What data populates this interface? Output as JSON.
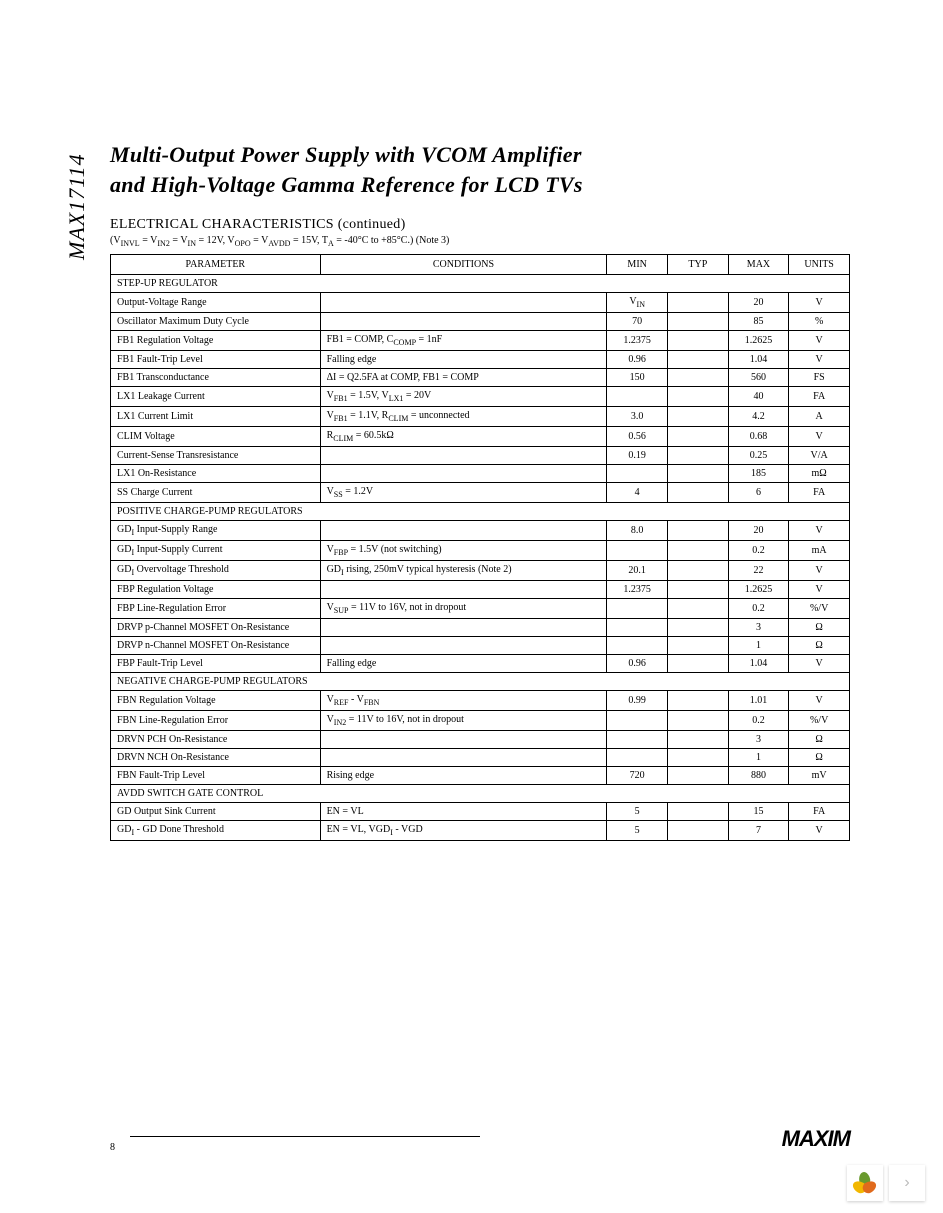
{
  "part_number": "MAX17114",
  "title_line1": "Multi-Output Power Supply with VCOM Amplifier",
  "title_line2": "and High-Voltage Gamma Reference for LCD TVs",
  "section_heading": "ELECTRICAL CHARACTERISTICS (continued)",
  "conditions_line": "(V_INVL = V_IN2 = V_IN = 12V, V_OPO = V_AVDD = 15V, T_A = -40°C to +85°C.) (Note 3)",
  "page_number": "8",
  "logo_text": "MAXIM",
  "table": {
    "columns": [
      "PARAMETER",
      "CONDITIONS",
      "MIN",
      "TYP",
      "MAX",
      "UNITS"
    ],
    "col_classes": [
      "col-param",
      "col-cond",
      "col-min",
      "col-typ",
      "col-max",
      "col-units"
    ],
    "border_color": "#000000",
    "font_size": 10,
    "rows": [
      {
        "type": "section",
        "label": "STEP-UP REGULATOR"
      },
      {
        "type": "data",
        "cells": [
          "Output-Voltage Range",
          "",
          "V_IN",
          "",
          "20",
          "V"
        ]
      },
      {
        "type": "data",
        "cells": [
          "Oscillator Maximum Duty Cycle",
          "",
          "70",
          "",
          "85",
          "%"
        ]
      },
      {
        "type": "data",
        "cells": [
          "FB1 Regulation Voltage",
          "FB1 = COMP, C_COMP = 1nF",
          "1.2375",
          "",
          "1.2625",
          "V"
        ]
      },
      {
        "type": "data",
        "cells": [
          "FB1 Fault-Trip Level",
          "Falling edge",
          "0.96",
          "",
          "1.04",
          "V"
        ]
      },
      {
        "type": "data",
        "cells": [
          "FB1 Transconductance",
          "ΔI = Q2.5FA at COMP, FB1 = COMP",
          "150",
          "",
          "560",
          "FS"
        ]
      },
      {
        "type": "data",
        "cells": [
          "LX1 Leakage Current",
          "V_FB1 = 1.5V, V_LX1 = 20V",
          "",
          "",
          "40",
          "FA"
        ]
      },
      {
        "type": "data",
        "cells": [
          "LX1 Current Limit",
          "V_FB1 = 1.1V, R_CLIM = unconnected",
          "3.0",
          "",
          "4.2",
          "A"
        ]
      },
      {
        "type": "data",
        "cells": [
          "CLIM Voltage",
          "R_CLIM = 60.5kΩ",
          "0.56",
          "",
          "0.68",
          "V"
        ]
      },
      {
        "type": "data",
        "cells": [
          "Current-Sense Transresistance",
          "",
          "0.19",
          "",
          "0.25",
          "V/A"
        ]
      },
      {
        "type": "data",
        "cells": [
          "LX1 On-Resistance",
          "",
          "",
          "",
          "185",
          "mΩ"
        ]
      },
      {
        "type": "data",
        "cells": [
          "SS Charge Current",
          "V_SS = 1.2V",
          "4",
          "",
          "6",
          "FA"
        ]
      },
      {
        "type": "section",
        "label": "POSITIVE CHARGE-PUMP REGULATORS"
      },
      {
        "type": "data",
        "cells": [
          "GD_I Input-Supply Range",
          "",
          "8.0",
          "",
          "20",
          "V"
        ]
      },
      {
        "type": "data",
        "cells": [
          "GD_I Input-Supply Current",
          "V_FBP = 1.5V (not switching)",
          "",
          "",
          "0.2",
          "mA"
        ]
      },
      {
        "type": "data",
        "cells": [
          "GD_I Overvoltage Threshold",
          "GD_I rising, 250mV typical hysteresis (Note 2)",
          "20.1",
          "",
          "22",
          "V"
        ]
      },
      {
        "type": "data",
        "cells": [
          "FBP Regulation Voltage",
          "",
          "1.2375",
          "",
          "1.2625",
          "V"
        ]
      },
      {
        "type": "data",
        "cells": [
          "FBP Line-Regulation Error",
          "V_SUP = 11V to 16V, not in dropout",
          "",
          "",
          "0.2",
          "%/V"
        ]
      },
      {
        "type": "data",
        "tall": true,
        "cells": [
          "DRVP p-Channel MOSFET On-Resistance",
          "",
          "",
          "",
          "3",
          "Ω"
        ]
      },
      {
        "type": "data",
        "tall": true,
        "cells": [
          "DRVP n-Channel MOSFET On-Resistance",
          "",
          "",
          "",
          "1",
          "Ω"
        ]
      },
      {
        "type": "data",
        "cells": [
          "FBP Fault-Trip Level",
          "Falling edge",
          "0.96",
          "",
          "1.04",
          "V"
        ]
      },
      {
        "type": "section",
        "label": "NEGATIVE CHARGE-PUMP REGULATORS"
      },
      {
        "type": "data",
        "cells": [
          "FBN Regulation Voltage",
          "V_REF - V_FBN",
          "0.99",
          "",
          "1.01",
          "V"
        ]
      },
      {
        "type": "data",
        "cells": [
          "FBN Line-Regulation Error",
          "V_IN2 = 11V to 16V, not in dropout",
          "",
          "",
          "0.2",
          "%/V"
        ]
      },
      {
        "type": "data",
        "cells": [
          "DRVN PCH On-Resistance",
          "",
          "",
          "",
          "3",
          "Ω"
        ]
      },
      {
        "type": "data",
        "cells": [
          "DRVN NCH On-Resistance",
          "",
          "",
          "",
          "1",
          "Ω"
        ]
      },
      {
        "type": "data",
        "cells": [
          "FBN Fault-Trip Level",
          "Rising edge",
          "720",
          "",
          "880",
          "mV"
        ]
      },
      {
        "type": "section",
        "label": "AVDD SWITCH GATE CONTROL"
      },
      {
        "type": "data",
        "cells": [
          "GD Output Sink Current",
          "EN = VL",
          "5",
          "",
          "15",
          "FA"
        ]
      },
      {
        "type": "data",
        "cells": [
          "GD_I - GD Done Threshold",
          "EN = VL, VGD_I - VGD",
          "5",
          "",
          "7",
          "V"
        ]
      }
    ]
  },
  "colors": {
    "background": "#ffffff",
    "text": "#000000",
    "border": "#000000"
  }
}
